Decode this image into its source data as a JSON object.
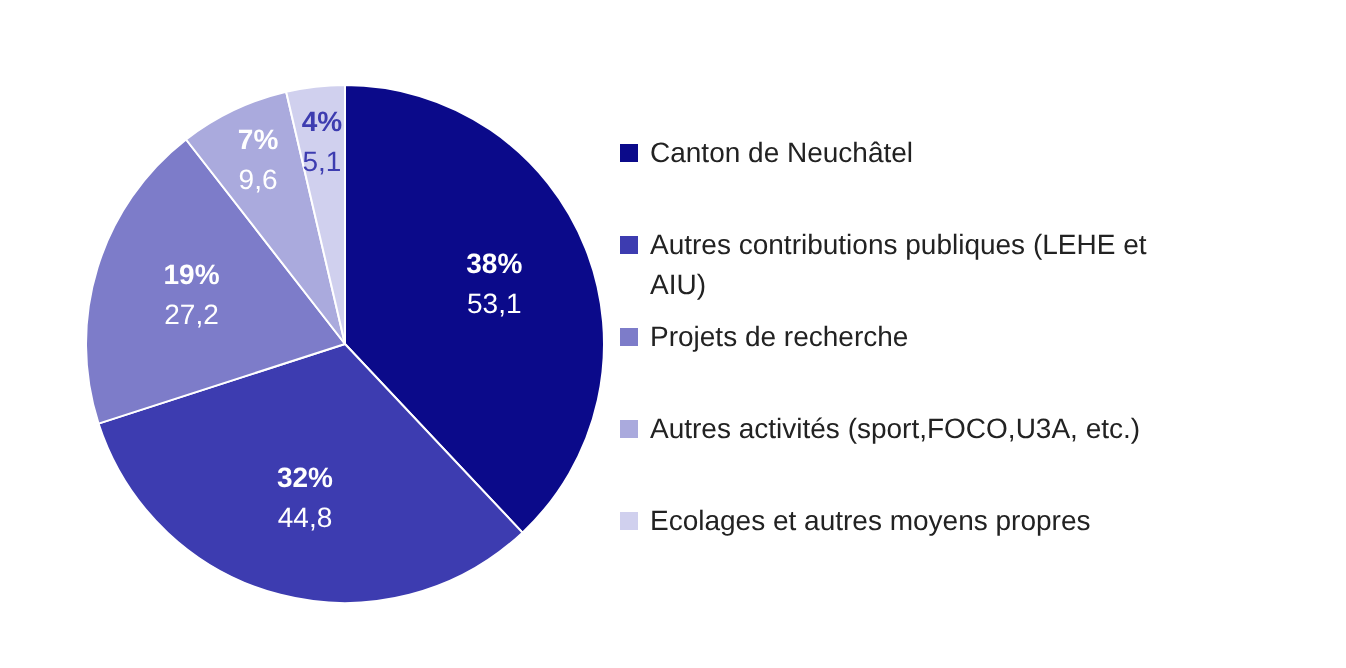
{
  "chart_data": {
    "type": "pie",
    "categories": [
      "Canton de Neuchâtel",
      "Autres contributions publiques (LEHE et AIU)",
      "Projets de recherche",
      "Autres activités (sport,FOCO,U3A, etc.)",
      "Ecolages et autres moyens propres"
    ],
    "values": [
      53.1,
      44.8,
      27.2,
      9.6,
      5.1
    ],
    "colors": [
      "#0b0a8a",
      "#3d3cb0",
      "#7d7cc9",
      "#aaaadd",
      "#d0d0ee"
    ],
    "value_labels": [
      "38%\n53,1",
      "32%\n44,8",
      "19%\n27,2",
      "7%\n9,6",
      "4%\n5,1"
    ],
    "legend": "right"
  }
}
